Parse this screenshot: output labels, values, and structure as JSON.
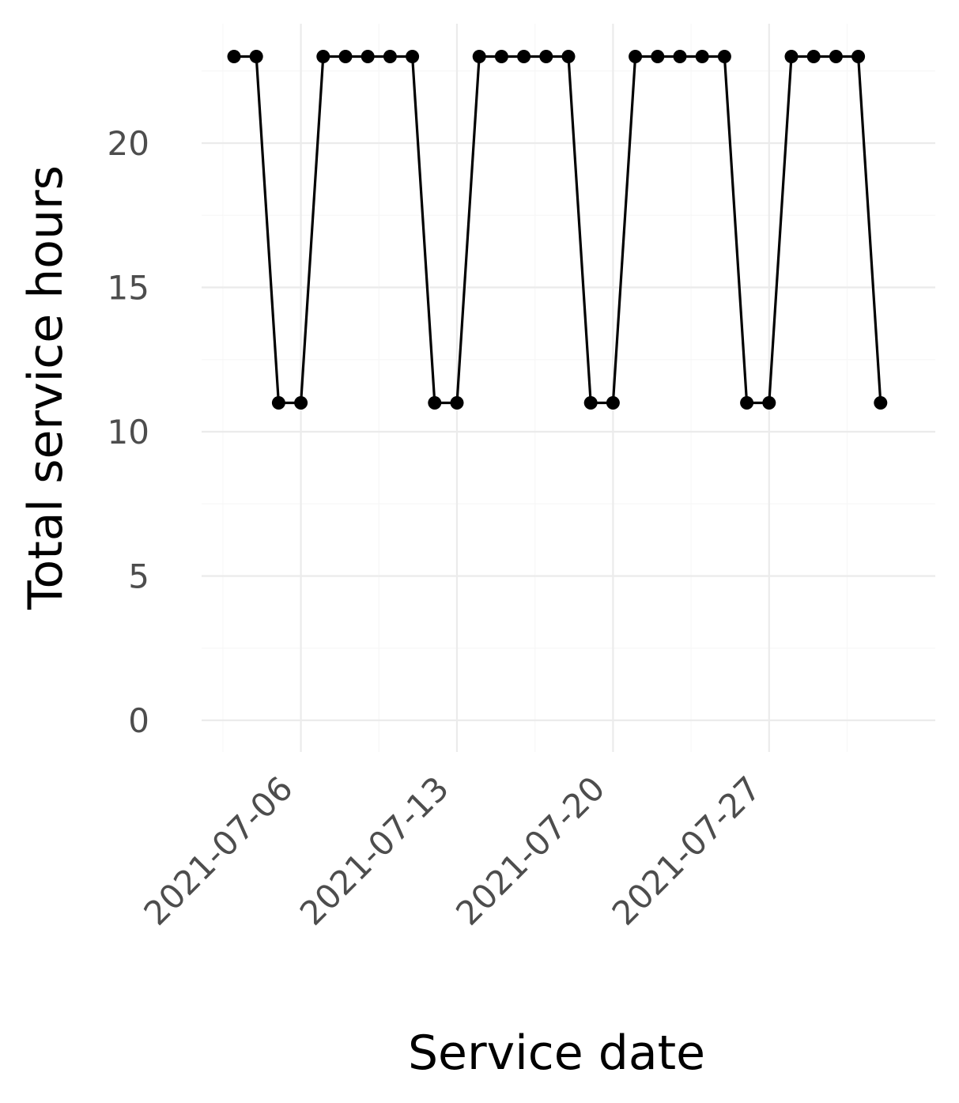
{
  "chart_data": {
    "type": "line",
    "title": "",
    "xlabel": "Service date",
    "ylabel": "Total service hours",
    "x_dates": [
      "2021-07-03",
      "2021-07-04",
      "2021-07-05",
      "2021-07-06",
      "2021-07-07",
      "2021-07-08",
      "2021-07-09",
      "2021-07-10",
      "2021-07-11",
      "2021-07-12",
      "2021-07-13",
      "2021-07-14",
      "2021-07-15",
      "2021-07-16",
      "2021-07-17",
      "2021-07-18",
      "2021-07-19",
      "2021-07-20",
      "2021-07-21",
      "2021-07-22",
      "2021-07-23",
      "2021-07-24",
      "2021-07-25",
      "2021-07-26",
      "2021-07-27",
      "2021-07-28",
      "2021-07-29",
      "2021-07-30",
      "2021-07-31",
      "2021-08-01"
    ],
    "values": [
      23,
      23,
      11,
      11,
      23,
      23,
      23,
      23,
      23,
      11,
      11,
      23,
      23,
      23,
      23,
      23,
      11,
      11,
      23,
      23,
      23,
      23,
      23,
      11,
      11,
      23,
      23,
      23,
      23,
      11
    ],
    "x_ticks": [
      "2021-07-06",
      "2021-07-13",
      "2021-07-20",
      "2021-07-27"
    ],
    "y_ticks": [
      0,
      5,
      10,
      15,
      20
    ],
    "ylim": [
      -1.2,
      24.1
    ],
    "xlim_days": [
      -1.52,
      31.5
    ],
    "grid": true,
    "legend": "none",
    "colors": {
      "line": "#000000",
      "point": "#000000",
      "grid_major": "#ebebeb",
      "grid_minor": "#f7f7f7",
      "tick_text": "#4d4d4d",
      "axis_title": "#000000"
    }
  }
}
